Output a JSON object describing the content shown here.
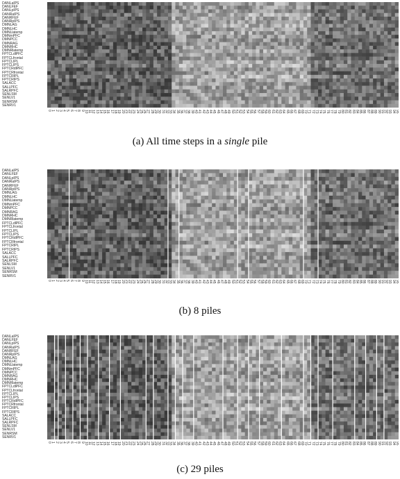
{
  "row_labels": [
    "DANLaIPS",
    "DANLFEF",
    "DANLpIPS",
    "DANRaIPS",
    "DANRFEF",
    "DANRpIPS",
    "DMNLAG",
    "DMNLHC",
    "DMNLlatemp",
    "DMNmPFC",
    "DMNPCC",
    "DMNRAG",
    "DMNRHC",
    "DMNRlatemp",
    "FPTCLdlPFC",
    "FPTCLfrontal",
    "FPTCLIPL",
    "FPTCLIPS",
    "FPTCRdlPFC",
    "FPTCRfrontal",
    "FPTCRIPL",
    "FPTCRIPS",
    "SALACC",
    "SALLPFC",
    "SALRPFC",
    "SENLSM",
    "SENLV1",
    "SENRSM",
    "SENRV1"
  ],
  "column_count": 96,
  "panels": [
    {
      "id": "a",
      "caption_prefix": "(a)  All time steps in a ",
      "caption_italic": "single",
      "caption_suffix": " pile",
      "pile_count": 1
    },
    {
      "id": "b",
      "caption_prefix": "(b)  8 piles",
      "caption_italic": "",
      "caption_suffix": "",
      "pile_count": 8
    },
    {
      "id": "c",
      "caption_prefix": "(c)  29 piles",
      "caption_italic": "",
      "caption_suffix": "",
      "pile_count": 29
    }
  ],
  "pile_boundaries": {
    "b": [
      6,
      33,
      36,
      52,
      55,
      70,
      74
    ],
    "c": [
      2,
      3,
      5,
      7,
      9,
      11,
      14,
      17,
      20,
      27,
      29,
      33,
      35,
      37,
      40,
      48,
      52,
      55,
      58,
      64,
      70,
      72,
      74,
      78,
      84,
      87,
      90,
      92
    ]
  },
  "colors": {
    "dark": "#3a3a3a",
    "light": "#d8d8d8",
    "separator": "#ffffff"
  }
}
